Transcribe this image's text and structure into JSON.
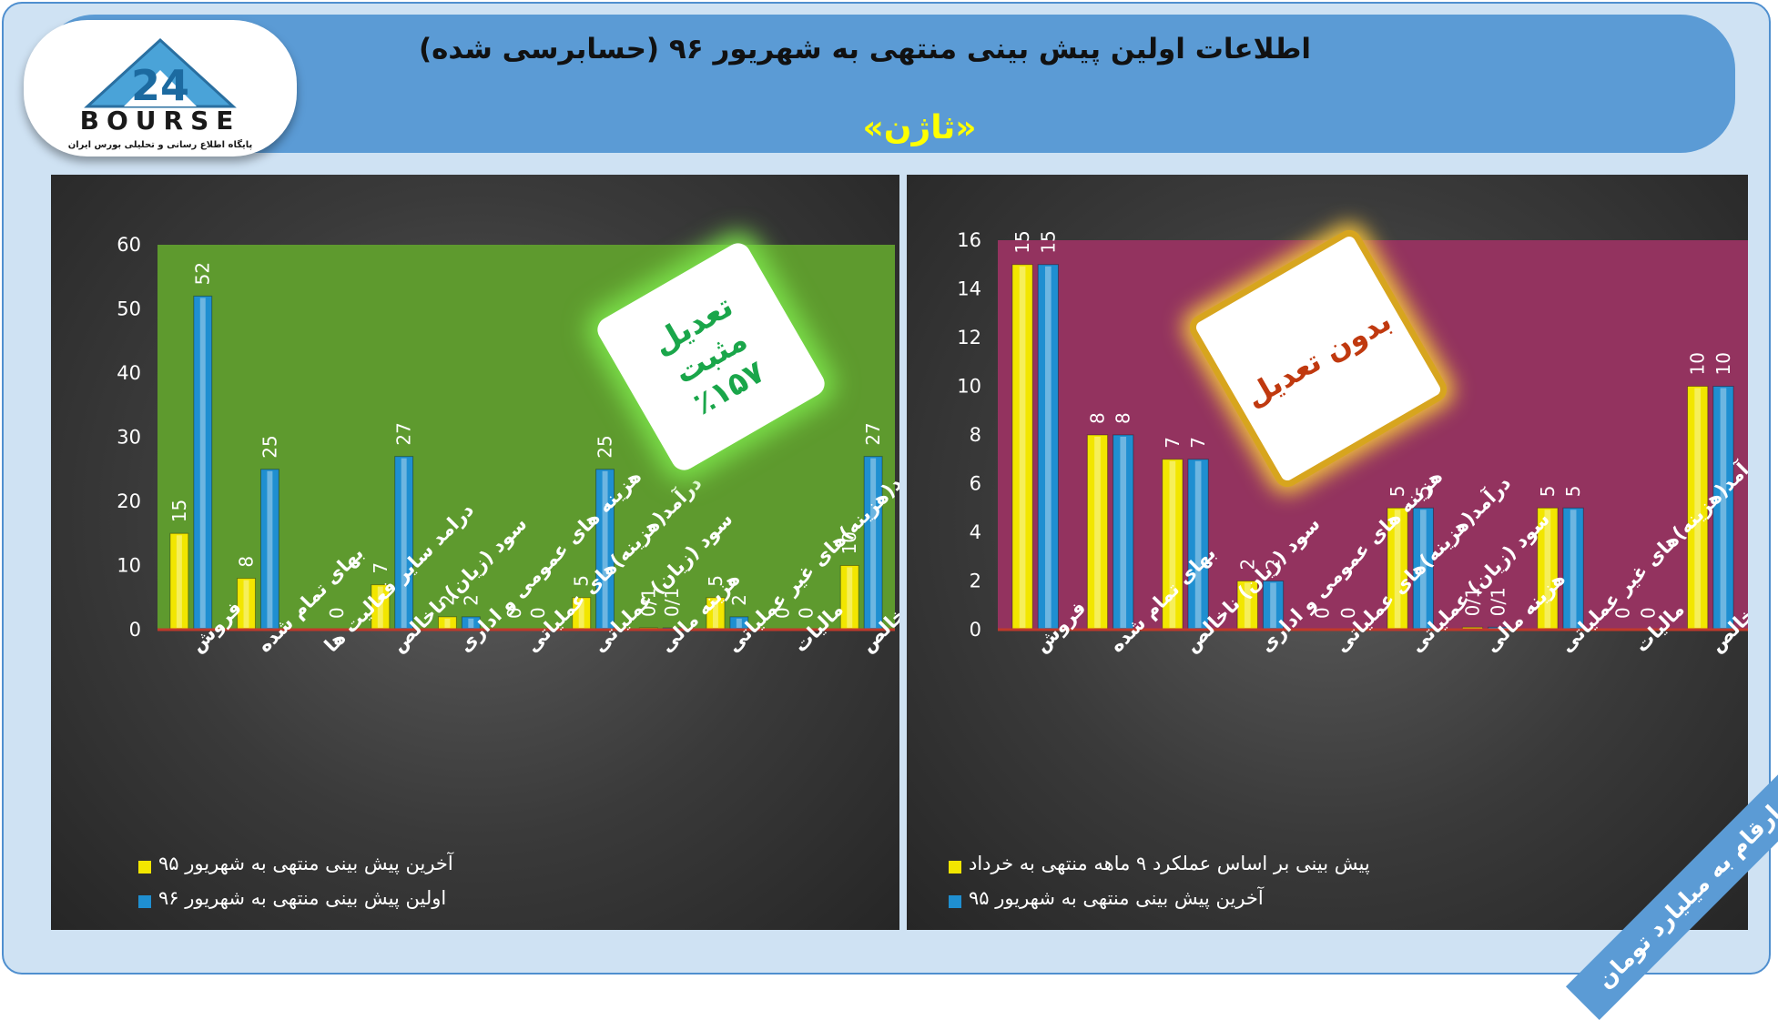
{
  "header": {
    "title": "اطلاعات اولین پیش بینی منتهی به شهریور ۹۶ (حسابرسی شده)",
    "subtitle": "«ثاژن»"
  },
  "logo": {
    "brand": "BOURSE",
    "number": "24",
    "tagline": "پایگاه اطلاع رسانی و تحلیلی بورس ایران"
  },
  "units_note": "ارقام به میلیارد تومان",
  "left_badge": {
    "line1": "تعدیل مثبت",
    "line2": "٪۱۵۷"
  },
  "right_badge": {
    "line1": "بدون تعدیل"
  },
  "colors": {
    "yellow": "#f2e600",
    "blue": "#1f8fd1",
    "left_plot_bg": "#5e9a2e",
    "right_plot_bg": "#93335f",
    "header_bg": "#5b9bd5",
    "badge_left_text": "#1aa64a",
    "badge_right_text": "#c0390f"
  },
  "chart_data": [
    {
      "type": "bar",
      "categories": [
        "فروش",
        "بهای تمام شده",
        "درامد سایر فعالیت ها",
        "سود (زیان) ناخالص",
        "هزینه های عمومی و اداری",
        "درآمد(هزینه)های عملیاتی",
        "سود (زیان) عملیاتی",
        "هزینه مالی",
        "درآمد(هزینه)های غیر عملیاتی",
        "مالیات",
        "سود خالص"
      ],
      "series": [
        {
          "name": "آخرین پیش بینی منتهی به شهریور ۹۵",
          "values": [
            15,
            8,
            null,
            7,
            2,
            0,
            5,
            0.1,
            5,
            0,
            10
          ],
          "labels": [
            "15",
            "8",
            "",
            "7",
            "2",
            "0",
            "5",
            "0/1",
            "5",
            "0",
            "10"
          ]
        },
        {
          "name": "اولین پیش بینی منتهی به شهریور ۹۶",
          "values": [
            52,
            25,
            0,
            27,
            2,
            0,
            25,
            0.1,
            2,
            0,
            27
          ],
          "labels": [
            "52",
            "25",
            "0",
            "27",
            "2",
            "0",
            "25",
            "0/1",
            "2",
            "0",
            "27"
          ]
        }
      ],
      "ylim": [
        0,
        60
      ],
      "yticks": [
        "0",
        "10",
        "20",
        "30",
        "40",
        "50",
        "60"
      ],
      "grid": false,
      "legend_position": "bottom-left"
    },
    {
      "type": "bar",
      "categories": [
        "فروش",
        "بهای تمام شده",
        "سود (زیان) ناخالص",
        "هزینه های عمومی و اداری",
        "درآمد(هزینه)های عملیاتی",
        "سود (زیان) عملیاتی",
        "هزینه مالی",
        "درآمد(هزینه)های غیر عملیاتی",
        "مالیات",
        "سود خالص"
      ],
      "series": [
        {
          "name": "پیش بینی بر اساس عملکرد ۹ ماهه منتهی به خرداد",
          "values": [
            15,
            8,
            7,
            2,
            0,
            5,
            0.1,
            5,
            0,
            10
          ],
          "labels": [
            "15",
            "8",
            "7",
            "2",
            "0",
            "5",
            "0/1",
            "5",
            "0",
            "10"
          ]
        },
        {
          "name": "آخرین پیش بینی منتهی به شهریور ۹۵",
          "values": [
            15,
            8,
            7,
            2,
            0,
            5,
            0.1,
            5,
            0,
            10
          ],
          "labels": [
            "15",
            "8",
            "7",
            "2",
            "0",
            "5",
            "0/1",
            "5",
            "0",
            "10"
          ]
        }
      ],
      "ylim": [
        0,
        16
      ],
      "yticks": [
        "0",
        "2",
        "4",
        "6",
        "8",
        "10",
        "12",
        "14",
        "16"
      ],
      "grid": false,
      "legend_position": "bottom-left"
    }
  ]
}
